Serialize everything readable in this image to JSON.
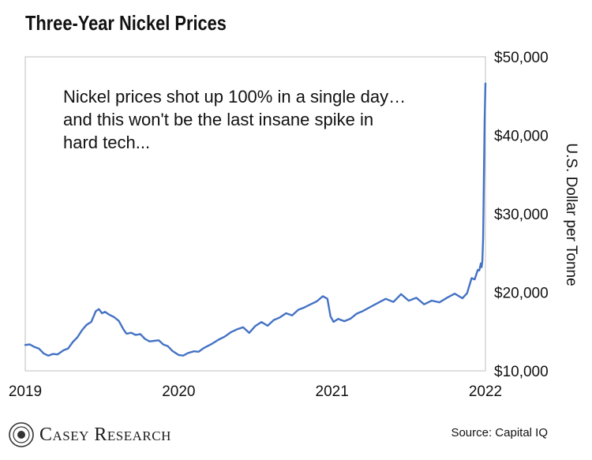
{
  "header": {
    "title": "Three-Year Nickel Prices"
  },
  "annotation": {
    "lines": [
      "Nickel prices shot up 100% in a single day…",
      "and this won't be the last insane spike in",
      "hard tech..."
    ]
  },
  "footer": {
    "brand": "Casey Research",
    "source": "Source: Capital IQ"
  },
  "colors": {
    "line": "#4472c4",
    "frame": "#bfbfbf",
    "text": "#111111"
  },
  "chart_data": {
    "type": "line",
    "title": "Three-Year Nickel Prices",
    "ylabel": "U.S. Dollar per Tonne",
    "xlim": [
      2019,
      2022
    ],
    "ylim": [
      10000,
      50000
    ],
    "x_ticks": [
      "2019",
      "2020",
      "2021",
      "2022"
    ],
    "y_ticks": [
      "$10,000",
      "$20,000",
      "$30,000",
      "$40,000",
      "$50,000"
    ],
    "y_axis_side": "right",
    "grid": false,
    "series": [
      {
        "x": [
          2019.0,
          2019.03,
          2019.06,
          2019.09,
          2019.12,
          2019.15,
          2019.18,
          2019.21,
          2019.25,
          2019.28,
          2019.31,
          2019.34,
          2019.37,
          2019.4,
          2019.43,
          2019.46,
          2019.48,
          2019.5,
          2019.52,
          2019.55,
          2019.58,
          2019.61,
          2019.64,
          2019.66,
          2019.69,
          2019.72,
          2019.75,
          2019.78,
          2019.81,
          2019.84,
          2019.87,
          2019.9,
          2019.93,
          2019.96,
          2020.0,
          2020.03,
          2020.06,
          2020.1,
          2020.13,
          2020.16,
          2020.19,
          2020.22,
          2020.26,
          2020.3,
          2020.34,
          2020.38,
          2020.42,
          2020.46,
          2020.5,
          2020.54,
          2020.58,
          2020.62,
          2020.66,
          2020.7,
          2020.74,
          2020.78,
          2020.82,
          2020.86,
          2020.9,
          2020.94,
          2020.97,
          2020.99,
          2021.01,
          2021.04,
          2021.08,
          2021.12,
          2021.16,
          2021.2,
          2021.25,
          2021.3,
          2021.35,
          2021.4,
          2021.45,
          2021.5,
          2021.55,
          2021.6,
          2021.65,
          2021.7,
          2021.75,
          2021.8,
          2021.85,
          2021.88,
          2021.91,
          2021.93,
          2021.95,
          2021.96,
          2021.97,
          2021.975,
          2021.98,
          2021.985,
          2021.99,
          2021.995,
          2022.0
        ],
        "values": [
          13300,
          13400,
          13100,
          12900,
          12300,
          12000,
          12200,
          12100,
          12600,
          12800,
          13600,
          14200,
          15100,
          15800,
          16200,
          17600,
          17900,
          17400,
          17600,
          17200,
          16900,
          16400,
          15300,
          14700,
          14800,
          14500,
          14600,
          14000,
          13700,
          13800,
          13900,
          13400,
          13200,
          12600,
          12100,
          12000,
          12300,
          12500,
          12400,
          12800,
          13100,
          13400,
          13900,
          14300,
          14900,
          15300,
          15600,
          14900,
          15800,
          16300,
          15800,
          16500,
          16800,
          17300,
          17000,
          17700,
          18000,
          18400,
          18800,
          19500,
          19200,
          17000,
          16300,
          16700,
          16400,
          16700,
          17300,
          17600,
          18100,
          18600,
          19100,
          18700,
          19700,
          18900,
          19300,
          18500,
          19000,
          18800,
          19400,
          19900,
          19300,
          19900,
          21800,
          21600,
          22800,
          22700,
          23600,
          23200,
          24000,
          27000,
          35000,
          42000,
          46600
        ]
      }
    ]
  }
}
